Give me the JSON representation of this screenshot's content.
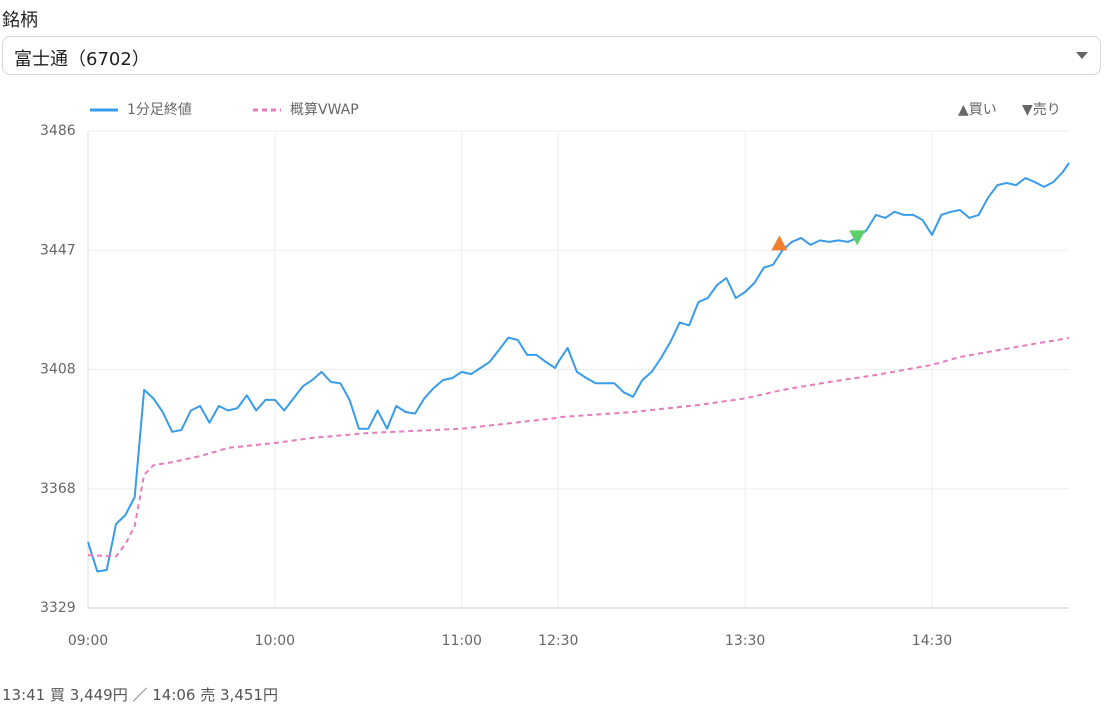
{
  "form": {
    "label": "銘柄",
    "select_value": "富士通（6702）"
  },
  "chart_data": {
    "type": "line",
    "xlim": [
      0,
      315
    ],
    "xticks": [
      {
        "value": 0,
        "label": "09:00"
      },
      {
        "value": 60,
        "label": "10:00"
      },
      {
        "value": 120,
        "label": "11:00"
      },
      {
        "value": 151,
        "label": "12:30"
      },
      {
        "value": 211,
        "label": "13:30"
      },
      {
        "value": 271,
        "label": "14:30"
      }
    ],
    "ylim": [
      3329,
      3486
    ],
    "yticks": [
      3329,
      {
        "value": 3368.25,
        "label": "3368"
      },
      {
        "value": 3407.5,
        "label": "3408"
      },
      {
        "value": 3446.75,
        "label": "3447"
      },
      3486
    ],
    "grid": true,
    "series": [
      {
        "name": "1分足終値",
        "color": "#3a9be9",
        "line_style": "solid",
        "x": [
          0,
          3,
          6,
          9,
          12,
          15,
          18,
          21,
          24,
          27,
          30,
          33,
          36,
          39,
          42,
          45,
          48,
          51,
          54,
          57,
          60,
          63,
          66,
          69,
          72,
          75,
          78,
          81,
          84,
          87,
          90,
          93,
          96,
          99,
          102,
          105,
          108,
          111,
          114,
          117,
          120,
          123,
          126,
          129,
          132,
          135,
          138,
          141,
          144,
          147,
          150,
          151,
          154,
          157,
          160,
          163,
          166,
          169,
          172,
          175,
          178,
          181,
          184,
          187,
          190,
          193,
          196,
          199,
          202,
          205,
          208,
          211,
          214,
          217,
          220,
          223,
          226,
          229,
          232,
          235,
          238,
          241,
          244,
          247,
          250,
          253,
          256,
          259,
          262,
          265,
          268,
          271,
          274,
          277,
          280,
          283,
          286,
          289,
          292,
          295,
          298,
          301,
          304,
          307,
          310,
          313,
          315
        ],
        "values": [
          3350.7,
          3341,
          3341.5,
          3356.6,
          3359.6,
          3365.5,
          3400.8,
          3398,
          3393.5,
          3387,
          3387.6,
          3394,
          3395.5,
          3390,
          3395.5,
          3394,
          3394.8,
          3399,
          3394,
          3397.5,
          3397.5,
          3394,
          3398,
          3402,
          3404,
          3406.7,
          3403.4,
          3403,
          3397.5,
          3388,
          3388,
          3394,
          3388,
          3395.5,
          3393.5,
          3393,
          3398,
          3401.4,
          3404,
          3404.7,
          3406.7,
          3406,
          3408,
          3410,
          3414,
          3418,
          3417.2,
          3412.3,
          3412.3,
          3410,
          3408,
          3410,
          3414.6,
          3406.7,
          3404.7,
          3403,
          3403,
          3403,
          3400,
          3398.5,
          3404,
          3406.7,
          3411.3,
          3416.6,
          3423,
          3422,
          3429.7,
          3431,
          3435.3,
          3437.6,
          3431,
          3433,
          3436,
          3441,
          3442,
          3446.8,
          3449.5,
          3450.8,
          3448.5,
          3450,
          3449.5,
          3450,
          3449.5,
          3450.8,
          3453.4,
          3458.4,
          3457.4,
          3459.4,
          3458.4,
          3458.4,
          3456.7,
          3451.8,
          3458.4,
          3459.4,
          3460,
          3457.4,
          3458.4,
          3464,
          3468.2,
          3468.9,
          3468.2,
          3470.5,
          3469.2,
          3467.6,
          3469.2,
          3472.5,
          3475.5
        ]
      },
      {
        "name": "概算VWAP",
        "color": "#e77bbd",
        "line_style": "dashed",
        "x": [
          0,
          9,
          12,
          15,
          18,
          21,
          27,
          36,
          45,
          60,
          72,
          90,
          120,
          150,
          151,
          175,
          196,
          211,
          223,
          238,
          253,
          271,
          280,
          298,
          315
        ],
        "values": [
          3346.4,
          3346,
          3350,
          3356,
          3372.8,
          3376,
          3377,
          3379,
          3381.7,
          3383.3,
          3385,
          3386.6,
          3388,
          3391.5,
          3391.8,
          3393.5,
          3395.8,
          3398,
          3400.8,
          3403.4,
          3405.7,
          3409,
          3411.6,
          3414.9,
          3417.9
        ]
      }
    ],
    "markers": [
      {
        "x": 222,
        "value": 3449,
        "color": "#f07f2f",
        "shape": "triangle-up"
      },
      {
        "x": 247,
        "value": 3451,
        "color": "#5ccf6b",
        "shape": "triangle-down"
      }
    ],
    "marker_legend": [
      "▲買い",
      "▼売り"
    ]
  },
  "trade_summary": "13:41 買 3,449円 ／ 14:06 売 3,451円"
}
